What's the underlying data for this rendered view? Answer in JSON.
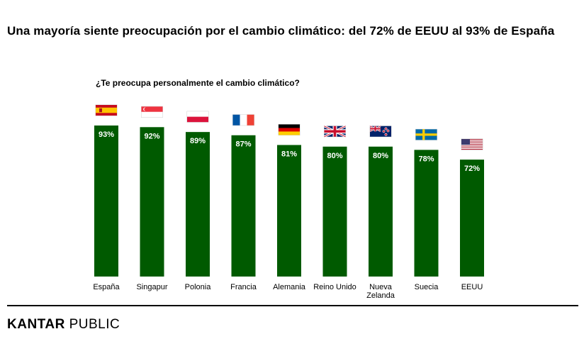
{
  "title": "Una mayoría siente preocupación por el cambio climático: del 72% de EEUU al 93% de España",
  "brand": {
    "part1": "KANTAR",
    "part2": "PUBLIC"
  },
  "colors": {
    "bar": "#005a00",
    "label": "#ffffff"
  },
  "chart_data": {
    "type": "bar",
    "subtitle": "¿Te preocupa personalmente el cambio climático?",
    "categories": [
      "España",
      "Singapur",
      "Polonia",
      "Francia",
      "Alemania",
      "Reino Unido",
      "Nueva Zelanda",
      "Suecia",
      "EEUU"
    ],
    "category_lines": [
      [
        "España"
      ],
      [
        "Singapur"
      ],
      [
        "Polonia"
      ],
      [
        "Francia"
      ],
      [
        "Alemania"
      ],
      [
        "Reino Unido"
      ],
      [
        "Nueva",
        "Zelanda"
      ],
      [
        "Suecia"
      ],
      [
        "EEUU"
      ]
    ],
    "values": [
      93,
      92,
      89,
      87,
      81,
      80,
      80,
      78,
      72
    ],
    "data_labels": [
      "93%",
      "92%",
      "89%",
      "87%",
      "81%",
      "80%",
      "80%",
      "78%",
      "72%"
    ],
    "flags": [
      "spain-flag",
      "singapore-flag",
      "poland-flag",
      "france-flag",
      "germany-flag",
      "uk-flag",
      "new-zealand-flag",
      "sweden-flag",
      "usa-flag"
    ],
    "ylim": [
      0,
      100
    ],
    "grid": false,
    "legend": "none"
  }
}
